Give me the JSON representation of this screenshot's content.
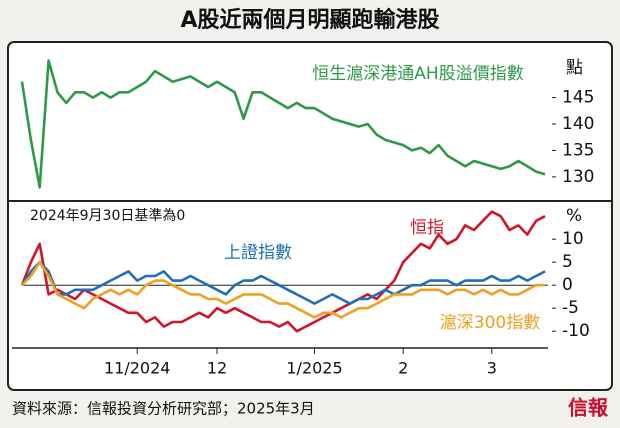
{
  "header": {
    "title": "A股近兩個月明顯跑輸港股"
  },
  "chart_data": [
    {
      "type": "line",
      "y_label": "點",
      "ylim": [
        126,
        154
      ],
      "yticks": [
        130,
        135,
        140,
        145
      ],
      "series": [
        {
          "name": "恒生滬深港通AH股溢價指數",
          "color": "#2e9a48",
          "values": [
            148,
            137,
            128,
            152,
            146,
            144,
            146,
            146,
            145,
            146,
            145,
            146,
            146,
            147,
            148,
            150,
            149,
            148,
            148.5,
            149,
            148,
            147,
            148,
            147,
            146,
            141,
            146,
            146,
            145,
            144,
            143,
            144,
            143,
            143,
            142,
            141,
            140.5,
            140,
            139.5,
            140,
            138,
            137,
            136.5,
            136,
            135,
            135.5,
            134.5,
            136,
            134,
            133,
            132,
            133,
            132.5,
            132,
            131.5,
            132,
            133,
            132,
            131,
            130.5
          ]
        }
      ]
    },
    {
      "type": "line",
      "annotation": "2024年9月30日基準為0",
      "y_label": "%",
      "categories": [
        null,
        null,
        null,
        null,
        null,
        null,
        null,
        null,
        null,
        null,
        null,
        null,
        null,
        "11/2024",
        null,
        null,
        null,
        null,
        null,
        null,
        null,
        null,
        "12",
        null,
        null,
        null,
        null,
        null,
        null,
        null,
        null,
        null,
        null,
        "1/2025",
        null,
        null,
        null,
        null,
        null,
        null,
        null,
        null,
        null,
        "2",
        null,
        null,
        null,
        null,
        null,
        null,
        null,
        null,
        null,
        "3",
        null,
        null,
        null,
        null,
        null,
        null
      ],
      "ylim": [
        -13,
        17
      ],
      "yticks": [
        -10,
        -5,
        0,
        5,
        10
      ],
      "series": [
        {
          "name": "恒指",
          "color": "#d0142a",
          "values": [
            0,
            5,
            9,
            -2,
            -1,
            -2,
            -3,
            -1,
            -2,
            -3,
            -4,
            -5,
            -6,
            -6,
            -8,
            -7,
            -9,
            -8,
            -8,
            -7,
            -6,
            -7,
            -5,
            -6,
            -5,
            -6,
            -7,
            -8,
            -8,
            -9,
            -8,
            -10,
            -9,
            -8,
            -7,
            -6,
            -5,
            -4,
            -3,
            -2,
            -3,
            -1,
            1,
            5,
            7,
            9,
            8,
            11,
            9,
            10,
            13,
            12,
            14,
            16,
            15,
            12,
            13,
            11,
            14,
            15
          ]
        },
        {
          "name": "上證指數",
          "color": "#1f6fb8",
          "values": [
            0,
            3,
            5,
            3,
            -2,
            -2,
            -1,
            -1,
            -1,
            0,
            1,
            2,
            3,
            1,
            2,
            2,
            3,
            1,
            1,
            2,
            1,
            0,
            -1,
            -2,
            0,
            1,
            1,
            2,
            1,
            0,
            -1,
            -2,
            -3,
            -4,
            -3,
            -2,
            -3,
            -4,
            -3,
            -3,
            -2,
            -1,
            -2,
            -1,
            0,
            0,
            1,
            1,
            1,
            0,
            1,
            1,
            1,
            2,
            1,
            1,
            2,
            1,
            2,
            3
          ]
        },
        {
          "name": "滬深300指數",
          "color": "#f0a01e",
          "values": [
            0,
            2,
            5,
            2,
            -2,
            -3,
            -4,
            -5,
            -3,
            -2,
            -1,
            -2,
            -1,
            -2,
            0,
            1,
            1,
            0,
            -1,
            -2,
            -2,
            -3,
            -3,
            -4,
            -3,
            -2,
            -2,
            -2,
            -3,
            -4,
            -4,
            -5,
            -6,
            -7,
            -6,
            -6,
            -7,
            -6,
            -5,
            -5,
            -4,
            -3,
            -2,
            -2,
            -2,
            -1,
            -1,
            -1,
            -2,
            -1,
            -1,
            -2,
            -1,
            -2,
            -1,
            -2,
            -2,
            -1,
            0,
            0
          ]
        }
      ]
    }
  ],
  "footer": {
    "source": "資料來源：信報投資分析研究部；2025年3月",
    "logo": "信報"
  }
}
